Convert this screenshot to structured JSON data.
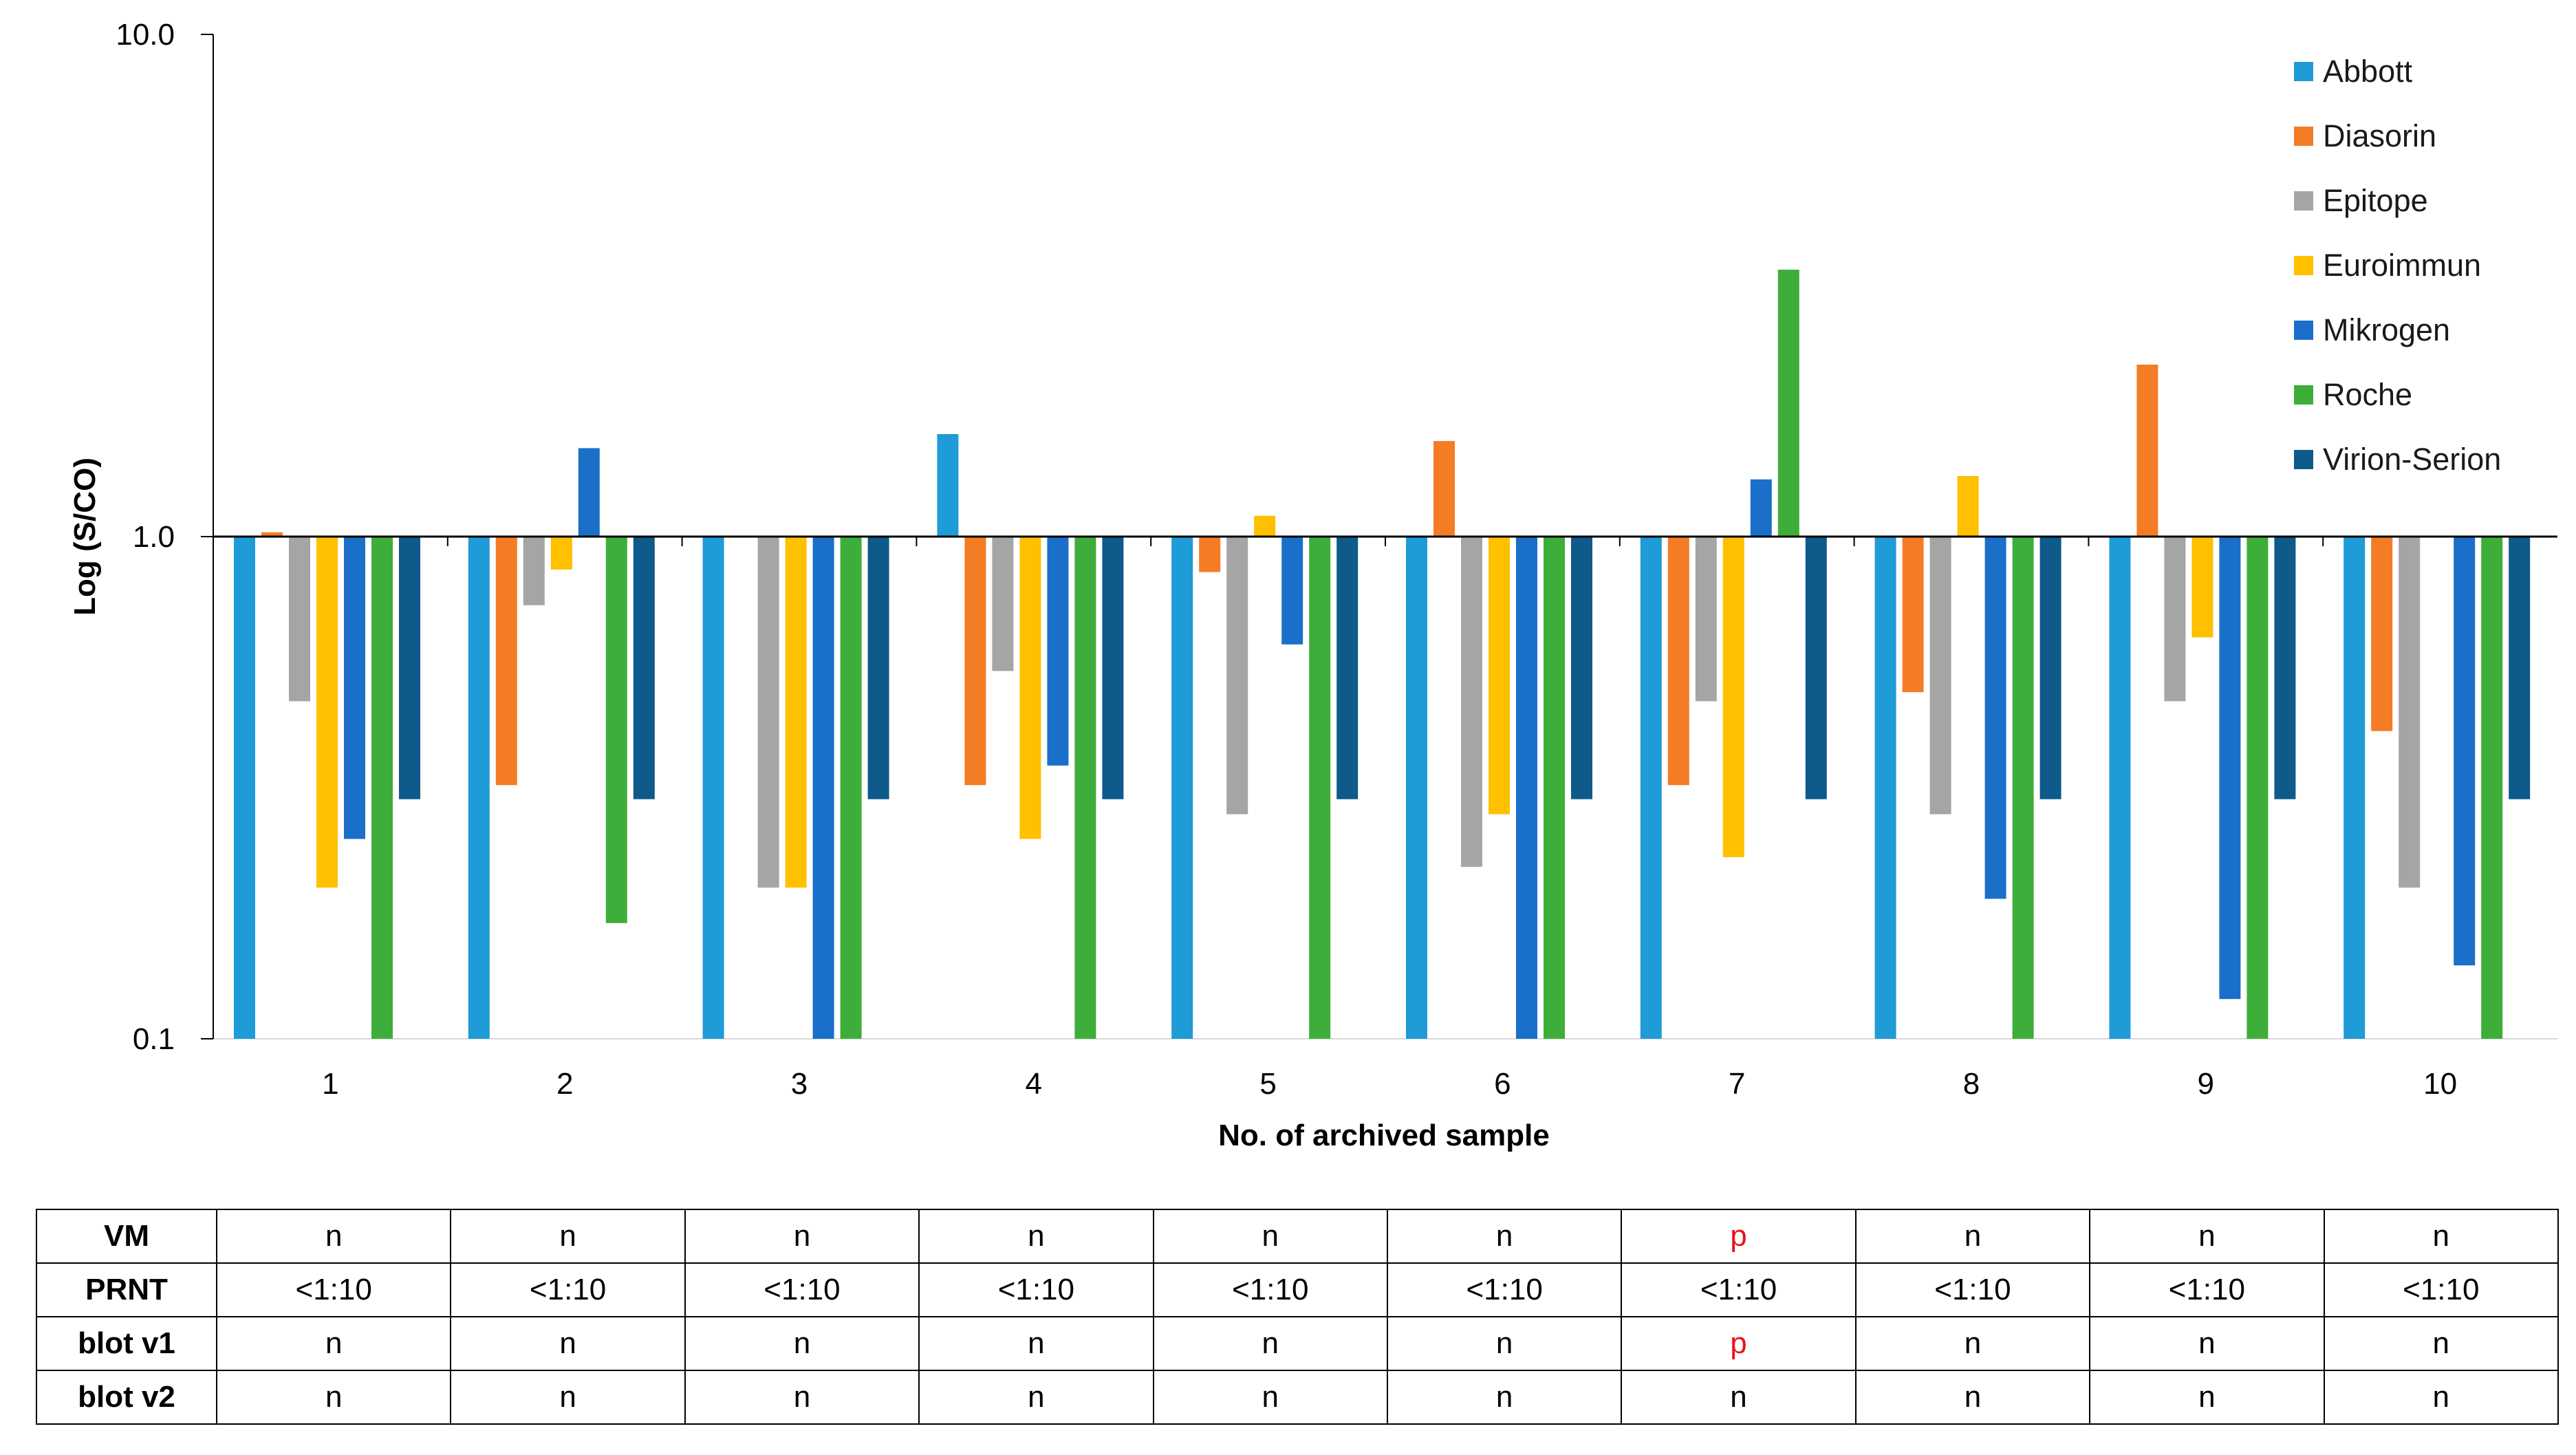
{
  "chart_data": {
    "type": "bar",
    "scale": "log",
    "baseline": 1.0,
    "xlabel": "No. of archived sample",
    "ylabel": "Log (S/CO)",
    "ylim": [
      0.1,
      10.0
    ],
    "yticks": [
      "10.0",
      "1.0",
      "0.1"
    ],
    "categories": [
      "1",
      "2",
      "3",
      "4",
      "5",
      "6",
      "7",
      "8",
      "9",
      "10"
    ],
    "legend_position": "top-right",
    "series": [
      {
        "name": "Abbott",
        "color": "#1F9BD7",
        "values": [
          0.1,
          0.1,
          0.1,
          1.6,
          0.1,
          0.1,
          0.1,
          0.1,
          0.1,
          0.1
        ]
      },
      {
        "name": "Diasorin",
        "color": "#F47C25",
        "values": [
          1.02,
          0.32,
          1.0,
          0.32,
          0.85,
          1.55,
          0.32,
          0.49,
          2.2,
          0.41
        ]
      },
      {
        "name": "Epitope",
        "color": "#A5A5A5",
        "values": [
          0.47,
          0.73,
          0.2,
          0.54,
          0.28,
          0.22,
          0.47,
          0.28,
          0.47,
          0.2
        ]
      },
      {
        "name": "Euroimmun",
        "color": "#FFC000",
        "values": [
          0.2,
          0.86,
          0.2,
          0.25,
          1.1,
          0.28,
          0.23,
          1.32,
          0.63,
          1.0
        ]
      },
      {
        "name": "Mikrogen",
        "color": "#1A6FC9",
        "values": [
          0.25,
          1.5,
          0.1,
          0.35,
          0.61,
          0.1,
          1.3,
          0.19,
          0.12,
          0.14
        ]
      },
      {
        "name": "Roche",
        "color": "#3EAE3A",
        "values": [
          0.1,
          0.17,
          0.1,
          0.1,
          0.1,
          0.1,
          3.4,
          0.1,
          0.1,
          0.1
        ]
      },
      {
        "name": "Virion-Serion",
        "color": "#0E5A8A",
        "values": [
          0.3,
          0.3,
          0.3,
          0.3,
          0.3,
          0.3,
          0.3,
          0.3,
          0.3,
          0.3
        ]
      }
    ]
  },
  "results_table": [
    {
      "label": "VM",
      "cells": [
        "n",
        "n",
        "n",
        "n",
        "n",
        "n",
        "p",
        "n",
        "n",
        "n"
      ]
    },
    {
      "label": "PRNT",
      "cells": [
        "<1:10",
        "<1:10",
        "<1:10",
        "<1:10",
        "<1:10",
        "<1:10",
        "<1:10",
        "<1:10",
        "<1:10",
        "<1:10"
      ]
    },
    {
      "label": "blot v1",
      "cells": [
        "n",
        "n",
        "n",
        "n",
        "n",
        "n",
        "p",
        "n",
        "n",
        "n"
      ]
    },
    {
      "label": "blot v2",
      "cells": [
        "n",
        "n",
        "n",
        "n",
        "n",
        "n",
        "n",
        "n",
        "n",
        "n"
      ]
    }
  ],
  "colors": {
    "positive_text": "#E8141B",
    "default_text": "#000000"
  }
}
